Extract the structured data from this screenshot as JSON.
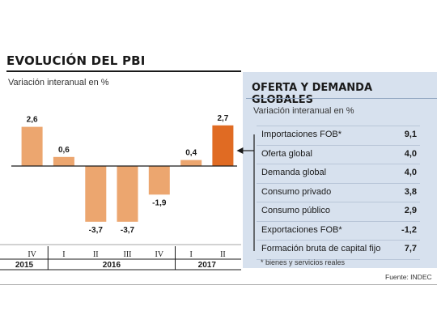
{
  "title": "EVOLUCIÓN DEL PBI",
  "subtitle": "Variación interanual en %",
  "chart_data": {
    "type": "bar",
    "categories": [
      "IV",
      "I",
      "II",
      "III",
      "IV",
      "I",
      "II"
    ],
    "years": [
      {
        "label": "2015",
        "quarters": [
          "IV"
        ]
      },
      {
        "label": "2016",
        "quarters": [
          "I",
          "II",
          "III",
          "IV"
        ]
      },
      {
        "label": "2017",
        "quarters": [
          "I",
          "II"
        ]
      }
    ],
    "values": [
      2.6,
      0.6,
      -3.7,
      -3.7,
      -1.9,
      0.4,
      2.7
    ],
    "value_labels": [
      "2,6",
      "0,6",
      "-3,7",
      "-3,7",
      "-1,9",
      "0,4",
      "2,7"
    ],
    "highlight_index": 6,
    "title": "EVOLUCIÓN DEL PBI",
    "ylabel": "Variación interanual en %",
    "ylim": [
      -4,
      3
    ],
    "grid": false,
    "colors": {
      "bar": "#eca66f",
      "highlight": "#e06b23",
      "axis": "#1a1a1a"
    }
  },
  "panel": {
    "title": "OFERTA Y DEMANDA GLOBALES",
    "subtitle": "Variación interanual en %",
    "background": "#d7e1ee",
    "rows": [
      {
        "label": "Importaciones FOB*",
        "value": "9,1"
      },
      {
        "label": "Oferta global",
        "value": "4,0"
      },
      {
        "label": "Demanda global",
        "value": "4,0"
      },
      {
        "label": "Consumo privado",
        "value": "3,8"
      },
      {
        "label": "Consumo público",
        "value": "2,9"
      },
      {
        "label": "Exportaciones FOB*",
        "value": "-1,2"
      },
      {
        "label": "Formación bruta de capital fijo",
        "value": "7,7"
      }
    ],
    "footnote": "* bienes y servicios reales"
  },
  "source": "Fuente: INDEC"
}
